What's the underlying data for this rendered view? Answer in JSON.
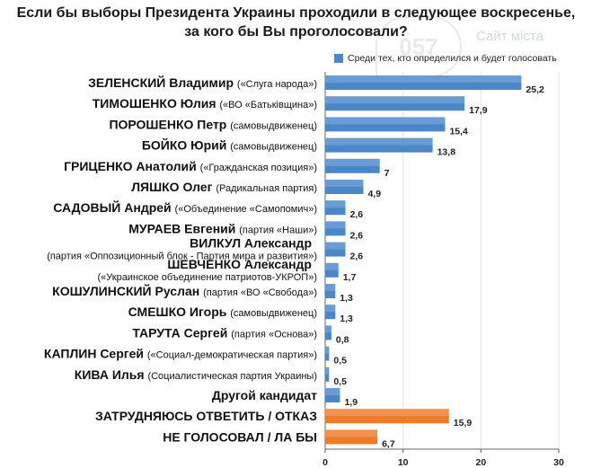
{
  "chart_data": {
    "type": "bar",
    "orientation": "horizontal",
    "title_line1": "Если бы выборы Президента Украины проходили в следующее воскресенье,",
    "title_line2": "за кого бы Вы проголосовали?",
    "legend": "Среди тех, кто определился и будет голосовать",
    "xlim": [
      0,
      30
    ],
    "xticks": [
      "0",
      "10",
      "20",
      "30"
    ],
    "colors": {
      "primary": "#4a86c8",
      "highlight": "#ee7a2a"
    },
    "items": [
      {
        "main": "ЗЕЛЕНСКИЙ Владимир",
        "sub": "(«Слуга народа»)",
        "value": 25.2,
        "label": "25,2",
        "highlight": false
      },
      {
        "main": "ТИМОШЕНКО Юлия",
        "sub": "(«ВО «Батьківщина»)",
        "value": 17.9,
        "label": "17,9",
        "highlight": false
      },
      {
        "main": "ПОРОШЕНКО Петр",
        "sub": "(самовыдвиженец)",
        "value": 15.4,
        "label": "15,4",
        "highlight": false
      },
      {
        "main": "БОЙКО Юрий",
        "sub": "(самовыдвиженец)",
        "value": 13.8,
        "label": "13,8",
        "highlight": false
      },
      {
        "main": "ГРИЦЕНКО Анатолий",
        "sub": "(«Гражданская позиция»)",
        "value": 7,
        "label": "7",
        "highlight": false
      },
      {
        "main": "ЛЯШКО Олег",
        "sub": "(Радикальная партия)",
        "value": 4.9,
        "label": "4,9",
        "highlight": false
      },
      {
        "main": "САДОВЫЙ Андрей",
        "sub": "(«Объединение «Самопомич»)",
        "value": 2.6,
        "label": "2,6",
        "highlight": false
      },
      {
        "main": "МУРАЕВ Евгений",
        "sub": "(партия «Наши»)",
        "value": 2.6,
        "label": "2,6",
        "highlight": false
      },
      {
        "main": "ВИЛКУЛ Александр",
        "sub": "(партия «Оппозиционный блок - Партия мира и развития»)",
        "value": 2.6,
        "label": "2,6",
        "highlight": false,
        "stacked": true
      },
      {
        "main": "ШЕВЧЕНКО Александр",
        "sub": "(«Украинское объединение патриотов-УКРОП»)",
        "value": 1.7,
        "label": "1,7",
        "highlight": false,
        "stacked": true
      },
      {
        "main": "КОШУЛИНСКИЙ Руслан",
        "sub": "(партия «ВО «Свобода»)",
        "value": 1.3,
        "label": "1,3",
        "highlight": false
      },
      {
        "main": "СМЕШКО Игорь",
        "sub": "(самовыдвиженец)",
        "value": 1.3,
        "label": "1,3",
        "highlight": false
      },
      {
        "main": "ТАРУТА Сергей",
        "sub": "(партия «Основа»)",
        "value": 0.8,
        "label": "0,8",
        "highlight": false
      },
      {
        "main": "КАПЛИН Сергей",
        "sub": "(«Социал-демократическая партия»)",
        "value": 0.5,
        "label": "0,5",
        "highlight": false
      },
      {
        "main": "КИВА Илья",
        "sub": "(Социалистическая партия Украины)",
        "value": 0.5,
        "label": "0,5",
        "highlight": false
      },
      {
        "main": "Другой кандидат",
        "sub": "",
        "value": 1.9,
        "label": "1,9",
        "highlight": false
      },
      {
        "main": "ЗАТРУДНЯЮСЬ ОТВЕТИТЬ / ОТКАЗ",
        "sub": "",
        "value": 15.9,
        "label": "15,9",
        "highlight": true
      },
      {
        "main": "НЕ ГОЛОСОВАЛ / ЛА БЫ",
        "sub": "",
        "value": 6.7,
        "label": "6,7",
        "highlight": true
      }
    ]
  },
  "watermark": {
    "logo_text": "057",
    "site_text": "Сайт міста"
  }
}
